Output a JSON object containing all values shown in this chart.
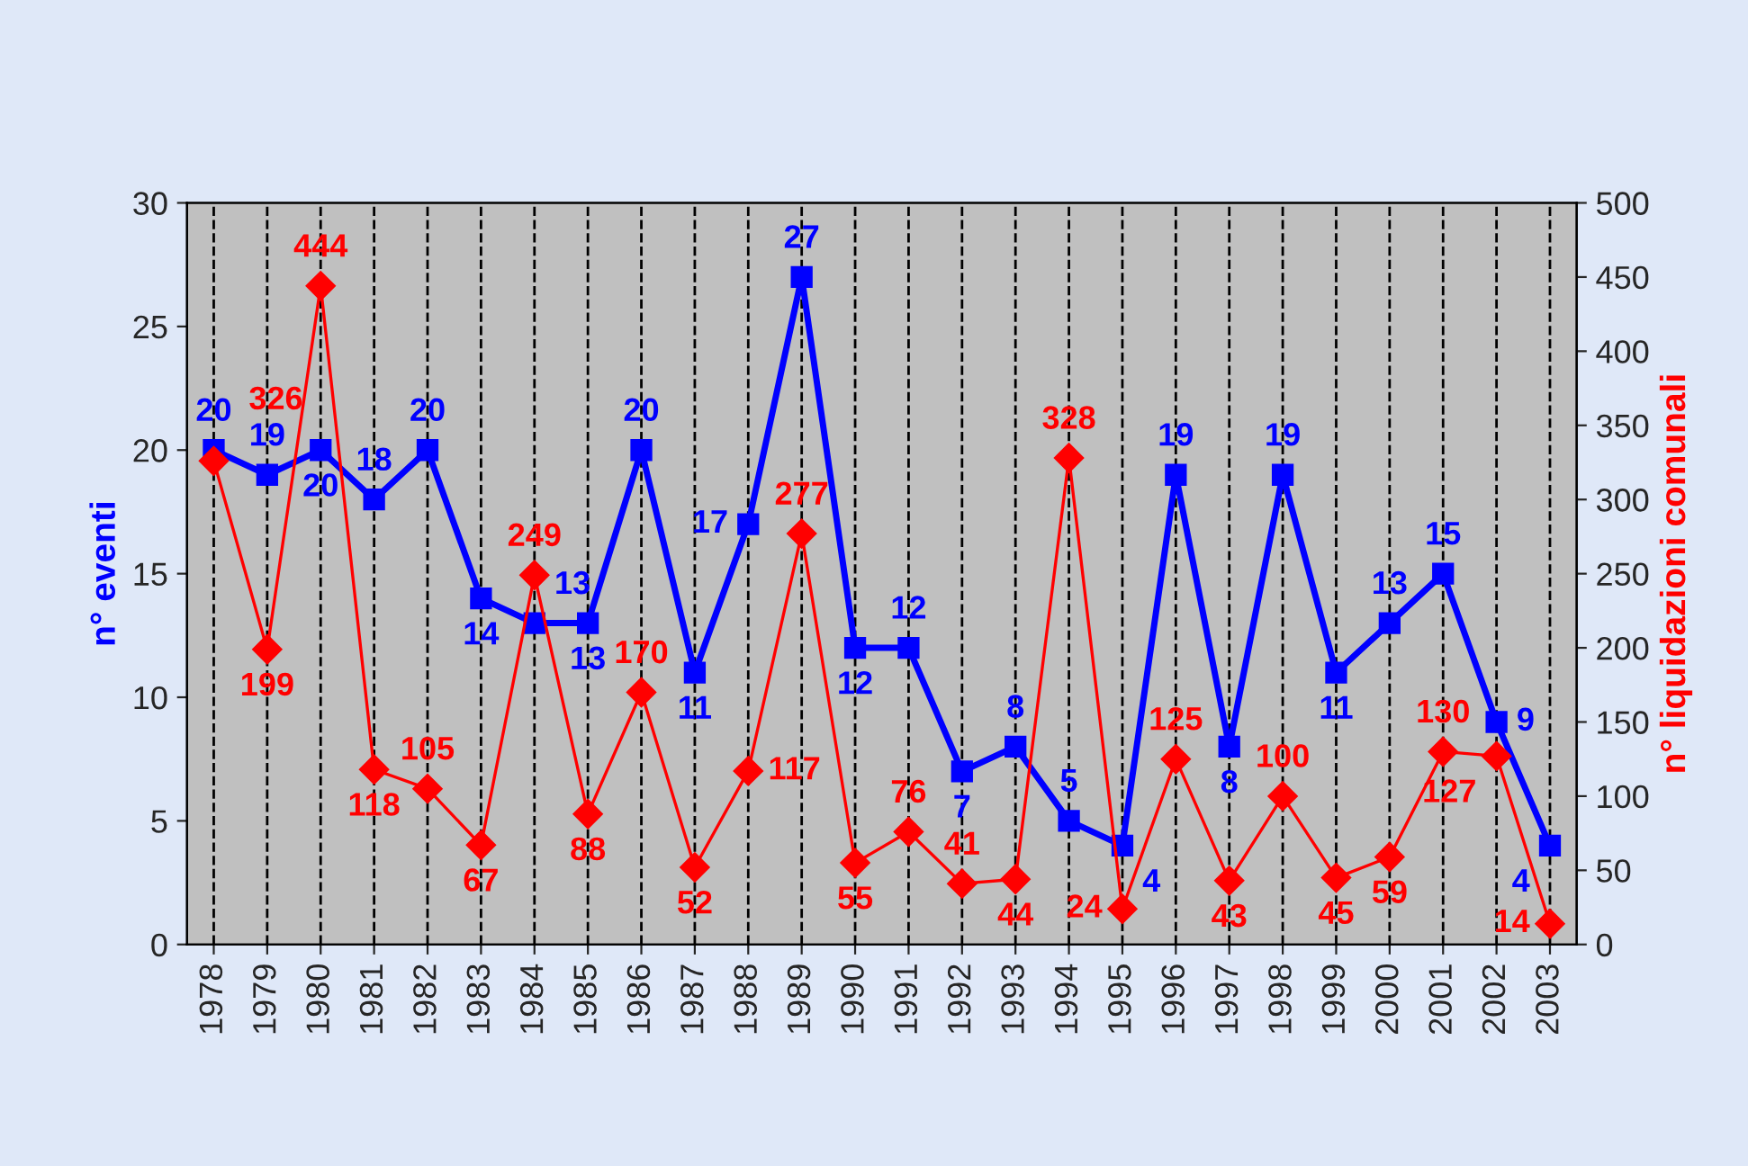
{
  "chart_data": {
    "type": "line",
    "categories": [
      "1978",
      "1979",
      "1980",
      "1981",
      "1982",
      "1983",
      "1984",
      "1985",
      "1986",
      "1987",
      "1988",
      "1989",
      "1990",
      "1991",
      "1992",
      "1993",
      "1994",
      "1995",
      "1996",
      "1997",
      "1998",
      "1999",
      "2000",
      "2001",
      "2002",
      "2003"
    ],
    "series": [
      {
        "color": "#0000ff",
        "marker": "square",
        "axis": "y",
        "values": [
          20,
          19,
          20,
          18,
          20,
          14,
          13,
          13,
          20,
          11,
          17,
          27,
          12,
          12,
          7,
          8,
          5,
          4,
          19,
          8,
          19,
          11,
          13,
          15,
          9,
          4
        ]
      },
      {
        "color": "#ff0000",
        "marker": "diamond",
        "axis": "y2",
        "values": [
          326,
          199,
          444,
          118,
          105,
          67,
          249,
          88,
          170,
          52,
          117,
          277,
          55,
          76,
          41,
          44,
          328,
          24,
          125,
          43,
          100,
          45,
          59,
          130,
          127,
          14
        ]
      }
    ],
    "ylabel": "n° eventi",
    "y2label": "n° liquidazioni comunali",
    "ylim": [
      0,
      30
    ],
    "yticks": [
      0,
      5,
      10,
      15,
      20,
      25,
      30
    ],
    "y2lim": [
      0,
      500
    ],
    "y2ticks": [
      0,
      50,
      100,
      150,
      200,
      250,
      300,
      350,
      400,
      450,
      500
    ],
    "grid": "x",
    "line_style": "solid",
    "data_labels": true,
    "legend": false
  }
}
